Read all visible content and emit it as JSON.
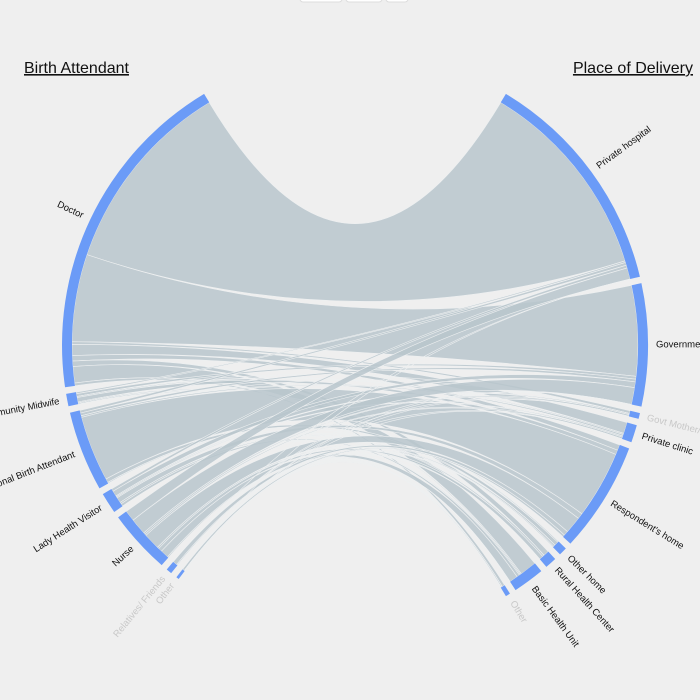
{
  "chart_data": {
    "type": "chord",
    "source_title": "Birth Attendant",
    "target_title": "Place of Delivery",
    "sources": [
      "Doctor",
      "Community Midwife",
      "Traditional Birth Attendant",
      "Lady Health Visitor",
      "Nurse",
      "Relatives/ Friends",
      "Other"
    ],
    "targets": [
      "Private hospital",
      "Government",
      "Govt Mother/Child Health Centre",
      "Private clinic",
      "Respondent's home",
      "Other home",
      "Rural Health Center",
      "Basic Health Unit",
      "Other"
    ],
    "flows": [
      [
        36,
        16,
        0.5,
        2,
        1,
        0,
        1,
        3,
        0.5
      ],
      [
        0.3,
        0.5,
        0,
        0.2,
        0.8,
        0.2,
        0,
        0.2,
        0
      ],
      [
        0.5,
        0.5,
        0,
        0.3,
        12,
        0.7,
        0,
        0.2,
        0
      ],
      [
        0.5,
        1,
        0.2,
        0.2,
        1,
        0,
        0.3,
        0.5,
        0
      ],
      [
        2,
        3,
        0.3,
        0.3,
        3,
        0.3,
        0.7,
        1.5,
        0.2
      ],
      [
        0,
        0,
        0,
        0,
        0.8,
        0.2,
        0,
        0,
        0
      ],
      [
        0,
        0,
        0,
        0,
        0.4,
        0,
        0,
        0,
        0.1
      ]
    ],
    "node_color": "#6b9bf7",
    "link_color": "#b9c5cd"
  }
}
